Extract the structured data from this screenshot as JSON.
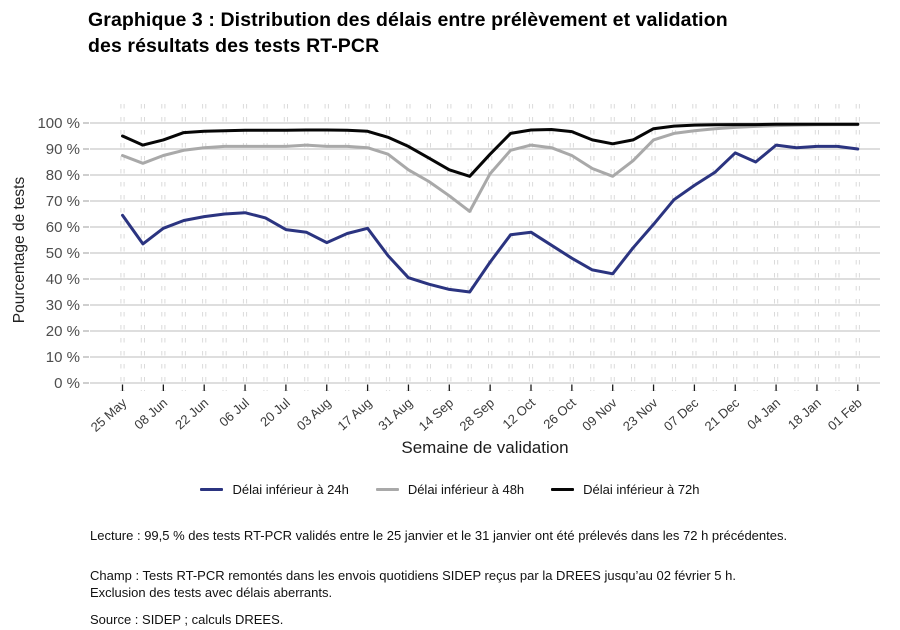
{
  "title": {
    "line1": "Graphique 3 : Distribution des délais entre prélèvement et validation",
    "line2": "des résultats des tests RT-PCR"
  },
  "chart_data": {
    "type": "line",
    "xlabel": "Semaine de validation",
    "ylabel": "Pourcentage de tests",
    "ylim": [
      0,
      100
    ],
    "grid": "horizontal solid gridlines every 10%, dashed vertical weekly guides",
    "legend_position": "bottom",
    "y_tick_labels": [
      "0 %",
      "10 %",
      "20 %",
      "30 %",
      "40 %",
      "50 %",
      "60 %",
      "70 %",
      "80 %",
      "90 %",
      "100 %"
    ],
    "x_tick_labels": [
      "25 May",
      "08 Jun",
      "22 Jun",
      "06 Jul",
      "20 Jul",
      "03 Aug",
      "17 Aug",
      "31 Aug",
      "14 Sep",
      "28 Sep",
      "12 Oct",
      "26 Oct",
      "09 Nov",
      "23 Nov",
      "07 Dec",
      "21 Dec",
      "04 Jan",
      "18 Jan",
      "01 Feb"
    ],
    "x_ticks_are_every_n_weeks": 2,
    "weeks": [
      "25 May",
      "01 Jun",
      "08 Jun",
      "15 Jun",
      "22 Jun",
      "29 Jun",
      "06 Jul",
      "13 Jul",
      "20 Jul",
      "27 Jul",
      "03 Aug",
      "10 Aug",
      "17 Aug",
      "24 Aug",
      "31 Aug",
      "07 Sep",
      "14 Sep",
      "21 Sep",
      "28 Sep",
      "05 Oct",
      "12 Oct",
      "19 Oct",
      "26 Oct",
      "02 Nov",
      "09 Nov",
      "16 Nov",
      "23 Nov",
      "30 Nov",
      "07 Dec",
      "14 Dec",
      "21 Dec",
      "28 Dec",
      "04 Jan",
      "11 Jan",
      "18 Jan",
      "25 Jan",
      "01 Feb"
    ],
    "series": [
      {
        "name": "Délai inférieur à 24h",
        "color": "#2b3480",
        "values": [
          64.5,
          53.5,
          59.5,
          62.5,
          64,
          65,
          65.5,
          63.5,
          59,
          58,
          54,
          57.5,
          59.5,
          49,
          40.5,
          38,
          36,
          35,
          46.5,
          57,
          58,
          53,
          48,
          43.5,
          42,
          52,
          61,
          70.5,
          76,
          81,
          88.5,
          85,
          91.5,
          90.5,
          91,
          91,
          90
        ]
      },
      {
        "name": "Délai inférieur à 48h",
        "color": "#a9a9a9",
        "values": [
          87.5,
          84.5,
          87.5,
          89.5,
          90.5,
          91,
          91,
          91,
          91,
          91.5,
          91,
          91,
          90.5,
          88,
          82,
          77.5,
          72,
          66,
          80.5,
          89.5,
          91.5,
          90.5,
          87.5,
          82.5,
          79.5,
          85.5,
          93.5,
          96,
          97,
          97.8,
          98.3,
          98.7,
          99,
          99.2,
          99.3,
          99.4,
          99.4
        ]
      },
      {
        "name": "Délai inférieur à 72h",
        "color": "#060606",
        "values": [
          95,
          91.5,
          93.5,
          96.3,
          96.8,
          97,
          97.2,
          97.2,
          97.2,
          97.3,
          97.3,
          97.2,
          96.8,
          94.5,
          91,
          86.5,
          82,
          79.5,
          88,
          96,
          97.3,
          97.5,
          96.7,
          93.5,
          92,
          93.5,
          97.8,
          98.8,
          99.2,
          99.3,
          99.4,
          99.4,
          99.5,
          99.5,
          99.5,
          99.5,
          99.5
        ]
      }
    ]
  },
  "notes": {
    "lecture": "Lecture : 99,5 % des tests RT-PCR validés entre le 25 janvier et le 31 janvier ont été prélevés dans les 72 h précédentes.",
    "champ_line1": "Champ : Tests RT-PCR remontés dans les envois quotidiens SIDEP reçus par la DREES jusqu’au 02 février 5 h.",
    "champ_line2": "Exclusion des tests avec délais aberrants.",
    "source": "Source : SIDEP ; calculs DREES."
  },
  "colors": {
    "background": "#ffffff",
    "grid": "#c9c9c9",
    "minor_grid": "#dadada",
    "tick_text": "#4d4d4d",
    "x_tick_mark": "#1a1a1a",
    "title_text": "#000000"
  }
}
